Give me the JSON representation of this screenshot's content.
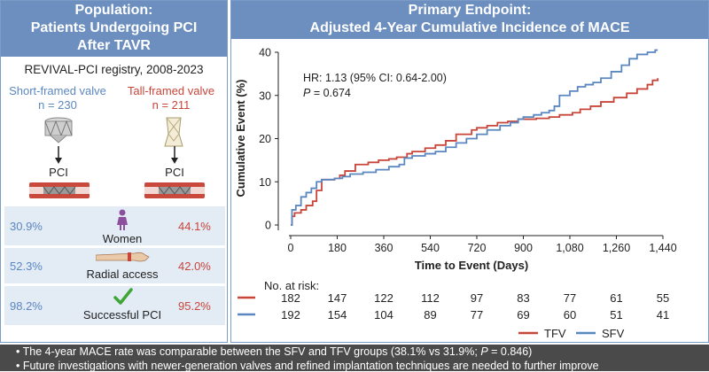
{
  "left": {
    "header_line1": "Population:",
    "header_line2": "Patients Undergoing PCI",
    "header_line3": "After TAVR",
    "registry": "REVIVAL-PCI registry, 2008-2023",
    "sfv_label": "Short-framed valve",
    "sfv_n": "n = 230",
    "tfv_label": "Tall-framed valve",
    "tfv_n": "n = 211",
    "pci_label_sfv": "PCI",
    "pci_label_tfv": "PCI",
    "rows": [
      {
        "sfv": "30.9%",
        "label": "Women",
        "tfv": "44.1%"
      },
      {
        "sfv": "52.3%",
        "label": "Radial access",
        "tfv": "42.0%"
      },
      {
        "sfv": "98.2%",
        "label": "Successful PCI",
        "tfv": "95.2%"
      }
    ],
    "colors": {
      "sfv": "#5b87c0",
      "tfv": "#c8453a",
      "header": "#6c8fbf",
      "rowbg": "#e3ebf5",
      "check": "#3fa535"
    }
  },
  "right": {
    "header_line1": "Primary Endpoint:",
    "header_line2": "Adjusted 4-Year Cumulative Incidence of MACE",
    "risk_title": "No. at risk:",
    "risk_tfv": [
      "182",
      "147",
      "122",
      "112",
      "97",
      "83",
      "77",
      "61",
      "55"
    ],
    "risk_sfv": [
      "192",
      "154",
      "104",
      "89",
      "77",
      "69",
      "60",
      "51",
      "41"
    ]
  },
  "chart_data": {
    "type": "line",
    "title": "Adjusted 4-Year Cumulative Incidence of MACE",
    "xlabel": "Time to Event (Days)",
    "ylabel": "Cumulative Event (%)",
    "xlim": [
      0,
      1440
    ],
    "ylim": [
      0,
      40
    ],
    "xticks": [
      "0",
      "180",
      "360",
      "540",
      "720",
      "900",
      "1,080",
      "1,260",
      "1,440"
    ],
    "xtick_values": [
      0,
      180,
      360,
      540,
      720,
      900,
      1080,
      1260,
      1440
    ],
    "yticks": [
      "0",
      "10",
      "20",
      "30",
      "40"
    ],
    "ytick_values": [
      0,
      10,
      20,
      30,
      40
    ],
    "annotation_line1": "HR: 1.13 (95% CI: 0.64-2.00)",
    "annotation_line2_prefix": "P",
    "annotation_line2_rest": " = 0.674",
    "legend": [
      "TFV",
      "SFV"
    ],
    "legend_position": "bottom-right",
    "series": [
      {
        "name": "TFV",
        "color": "#c8453a",
        "x": [
          0,
          5,
          15,
          40,
          60,
          85,
          100,
          120,
          170,
          190,
          210,
          250,
          300,
          340,
          380,
          410,
          450,
          470,
          520,
          560,
          600,
          640,
          700,
          720,
          760,
          800,
          840,
          880,
          950,
          1000,
          1040,
          1090,
          1120,
          1160,
          1200,
          1250,
          1300,
          1340,
          1380,
          1400,
          1420
        ],
        "y": [
          0,
          2,
          2.8,
          3.5,
          4.5,
          5.5,
          8,
          10.5,
          10.8,
          11.5,
          12.5,
          14,
          14.5,
          15,
          15.3,
          15.7,
          16.5,
          17,
          17.8,
          18.5,
          19.5,
          21,
          22,
          22.5,
          23,
          23.7,
          24,
          24.5,
          24.7,
          25,
          25.5,
          26,
          26.8,
          27.5,
          28.5,
          29.5,
          30.5,
          31.5,
          32.5,
          33.5,
          34
        ]
      },
      {
        "name": "SFV",
        "color": "#5b87c0",
        "x": [
          0,
          5,
          20,
          40,
          60,
          80,
          100,
          120,
          170,
          200,
          230,
          280,
          330,
          380,
          420,
          440,
          470,
          520,
          560,
          600,
          640,
          680,
          720,
          760,
          810,
          850,
          880,
          900,
          940,
          970,
          1000,
          1020,
          1040,
          1080,
          1110,
          1140,
          1170,
          1200,
          1240,
          1280,
          1310,
          1340,
          1380,
          1410,
          1420
        ],
        "y": [
          0,
          3.5,
          4.5,
          6.5,
          7.5,
          8.5,
          10,
          10.5,
          10.8,
          11.2,
          11.8,
          12.2,
          12.8,
          13.5,
          14,
          15.5,
          16,
          16.5,
          17,
          18,
          19,
          20,
          21,
          22,
          23,
          23.7,
          24.5,
          25,
          25.5,
          26,
          26.5,
          27.5,
          30,
          31,
          32,
          32.5,
          33,
          34,
          35.5,
          37,
          38.5,
          39.5,
          40,
          40.5,
          40.5
        ]
      }
    ]
  },
  "bottom": {
    "bullet1_prefix": "• The 4-year MACE rate was comparable between the SFV and TFV groups (38.1% vs 31.9%; ",
    "bullet1_p": "P",
    "bullet1_suffix": " = 0.846)",
    "bullet2": "• Future investigations with newer-generation valves and refined implantation techniques are needed to further improve"
  }
}
